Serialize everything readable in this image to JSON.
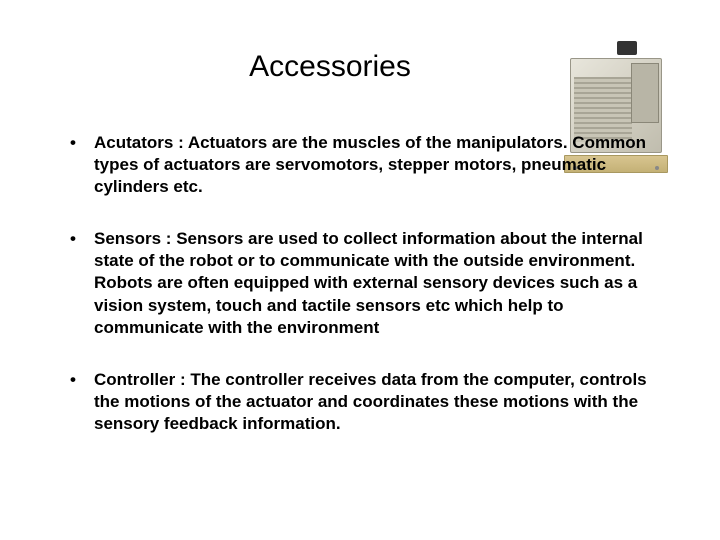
{
  "title": "Accessories",
  "bullets": [
    {
      "text": "Acutators : Actuators are the muscles of the manipulators. Common types of actuators are servomotors, stepper motors, pneumatic cylinders etc."
    },
    {
      "text": "Sensors : Sensors are used to collect information about the internal state of the robot or to communicate with the outside environment. Robots are often equipped with external sensory devices such as a vision system, touch and tactile sensors etc which help to communicate with the environment"
    },
    {
      "text": "Controller : The controller receives data from the computer, controls the motions of the actuator and coordinates these motions with the sensory feedback information."
    }
  ],
  "colors": {
    "background": "#ffffff",
    "text": "#000000",
    "device_body": "#d4d1c4",
    "device_base": "#c4b176"
  },
  "typography": {
    "title_fontsize": 30,
    "body_fontsize": 17,
    "body_weight": "bold",
    "font_family": "Arial"
  }
}
